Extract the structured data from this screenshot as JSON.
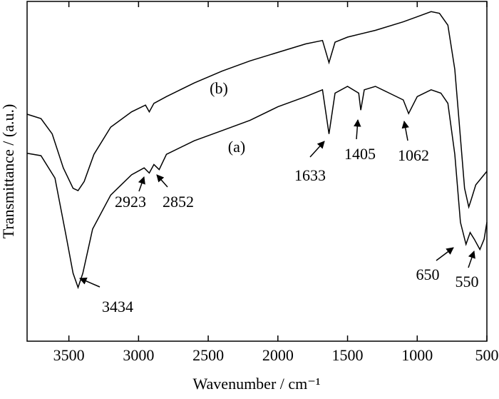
{
  "chart_data": {
    "type": "line",
    "xlabel": "Wavenumber / cm⁻¹",
    "ylabel": "Transmittance / (a.u.)",
    "xlim": [
      3800,
      500
    ],
    "xticks": [
      3500,
      3000,
      2500,
      2000,
      1500,
      1000,
      500
    ],
    "ylim": [
      0,
      100
    ],
    "series": [
      {
        "name": "(a)",
        "color": "#000000",
        "x": [
          3800,
          3700,
          3600,
          3520,
          3470,
          3434,
          3400,
          3330,
          3200,
          3050,
          2960,
          2923,
          2890,
          2852,
          2800,
          2600,
          2400,
          2200,
          2000,
          1800,
          1680,
          1633,
          1590,
          1500,
          1420,
          1405,
          1380,
          1300,
          1200,
          1100,
          1062,
          1000,
          900,
          830,
          780,
          730,
          690,
          650,
          620,
          590,
          550,
          520,
          500
        ],
        "values": [
          55.3,
          54.6,
          48,
          31,
          20,
          15.8,
          20,
          33,
          43,
          49,
          51,
          49.5,
          52,
          50.5,
          55,
          59,
          62,
          65,
          69,
          72,
          74,
          61,
          73,
          75,
          73,
          68,
          74,
          75,
          73,
          71,
          67,
          72,
          74,
          73,
          70,
          55,
          35,
          28.5,
          32,
          30,
          27,
          30,
          35
        ]
      },
      {
        "name": "(b)",
        "color": "#000000",
        "x": [
          3800,
          3700,
          3620,
          3540,
          3470,
          3434,
          3390,
          3320,
          3200,
          3050,
          2950,
          2923,
          2890,
          2800,
          2600,
          2400,
          2200,
          2000,
          1800,
          1680,
          1633,
          1590,
          1500,
          1300,
          1100,
          1000,
          900,
          840,
          780,
          730,
          700,
          660,
          630,
          610,
          580,
          540,
          500
        ],
        "values": [
          66.8,
          65.5,
          61,
          51,
          45,
          44.3,
          47,
          55,
          63,
          67.5,
          69.5,
          67.5,
          70,
          72,
          76,
          79.5,
          82.5,
          85,
          87.5,
          88.5,
          82,
          88,
          89.5,
          91.5,
          94,
          95.5,
          97,
          96.5,
          93,
          80,
          65,
          45,
          39.5,
          42,
          46,
          48,
          50
        ]
      }
    ],
    "annotations": [
      "3434",
      "2923",
      "2852",
      "1633",
      "1405",
      "1062",
      "650",
      "550"
    ]
  }
}
